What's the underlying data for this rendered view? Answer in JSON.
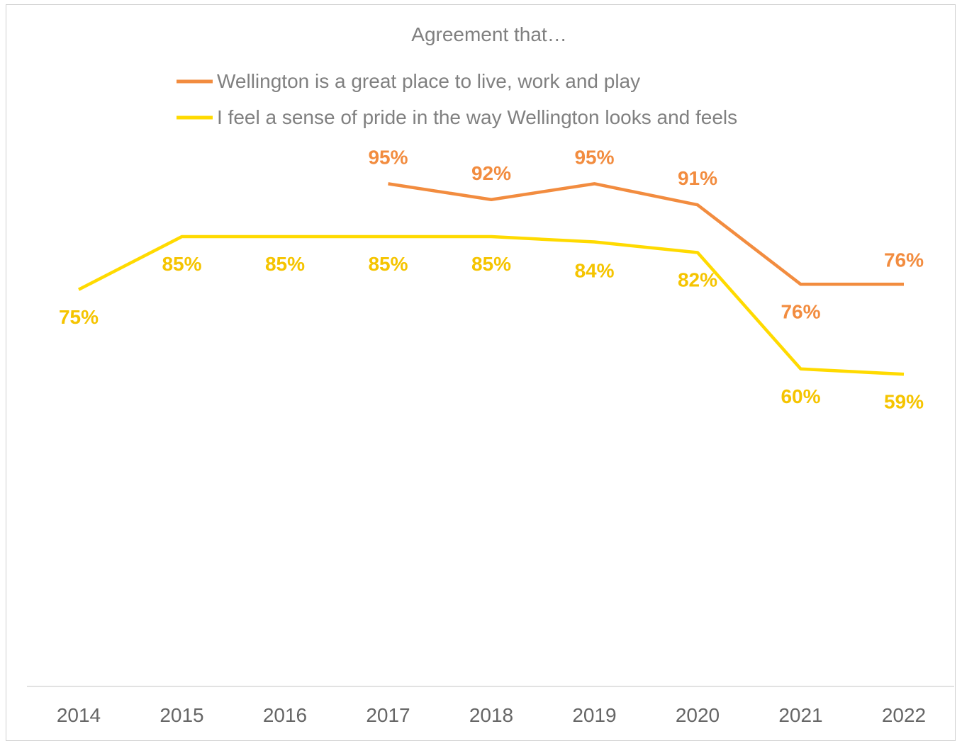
{
  "chart_data": {
    "type": "line",
    "title": "Agreement that…",
    "xlabel": "",
    "ylabel": "",
    "categories": [
      "2014",
      "2015",
      "2016",
      "2017",
      "2018",
      "2019",
      "2020",
      "2021",
      "2022"
    ],
    "ylim": [
      0,
      100
    ],
    "grid": false,
    "legend": "top",
    "series": [
      {
        "name": "Wellington is a great place to live, work and play",
        "color": "#F28C3F",
        "values": [
          null,
          null,
          null,
          95,
          92,
          95,
          91,
          76,
          76
        ],
        "labels": [
          "",
          "",
          "",
          "95%",
          "92%",
          "95%",
          "91%",
          "76%",
          "76%"
        ]
      },
      {
        "name": "I feel a sense of pride in the way Wellington looks and feels",
        "color": "#FFDA00",
        "label_color": "#F5C400",
        "values": [
          75,
          85,
          85,
          85,
          85,
          84,
          82,
          60,
          59
        ],
        "labels": [
          "75%",
          "85%",
          "85%",
          "85%",
          "85%",
          "84%",
          "82%",
          "60%",
          "59%"
        ]
      }
    ]
  }
}
